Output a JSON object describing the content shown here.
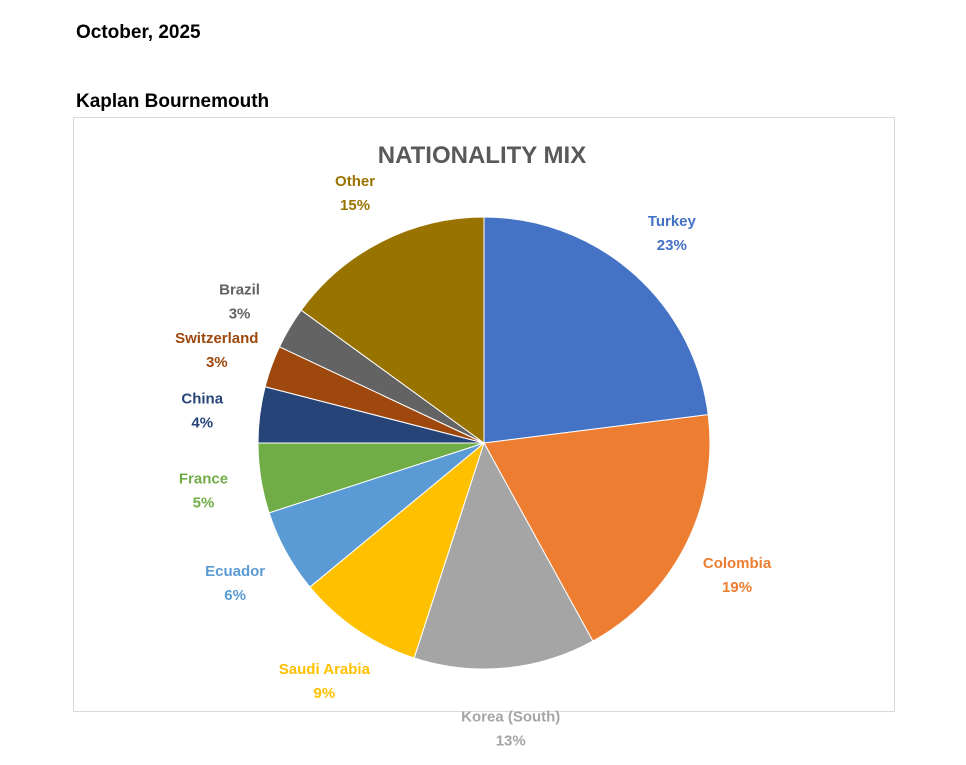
{
  "header": {
    "date": "October, 2025",
    "location": "Kaplan Bournemouth"
  },
  "chart_data": {
    "type": "pie",
    "title": "NATIONALITY MIX",
    "start_angle_deg": 0,
    "direction": "clockwise",
    "slices": [
      {
        "label": "Turkey",
        "value": 23,
        "display": "23%",
        "color": "#4472C4"
      },
      {
        "label": "Colombia",
        "value": 19,
        "display": "19%",
        "color": "#ED7D31"
      },
      {
        "label": "Korea (South)",
        "value": 13,
        "display": "13%",
        "color": "#A5A5A5"
      },
      {
        "label": "Saudi Arabia",
        "value": 9,
        "display": "9%",
        "color": "#FFC000"
      },
      {
        "label": "Ecuador",
        "value": 6,
        "display": "6%",
        "color": "#5B9BD5"
      },
      {
        "label": "France",
        "value": 5,
        "display": "5%",
        "color": "#70AD47"
      },
      {
        "label": "China",
        "value": 4,
        "display": "4%",
        "color": "#264478"
      },
      {
        "label": "Switzerland",
        "value": 3,
        "display": "3%",
        "color": "#9E480E"
      },
      {
        "label": "Brazil",
        "value": 3,
        "display": "3%",
        "color": "#636363"
      },
      {
        "label": "Other",
        "value": 15,
        "display": "15%",
        "color": "#997300"
      }
    ],
    "legend": "none",
    "data_labels": "outside"
  }
}
